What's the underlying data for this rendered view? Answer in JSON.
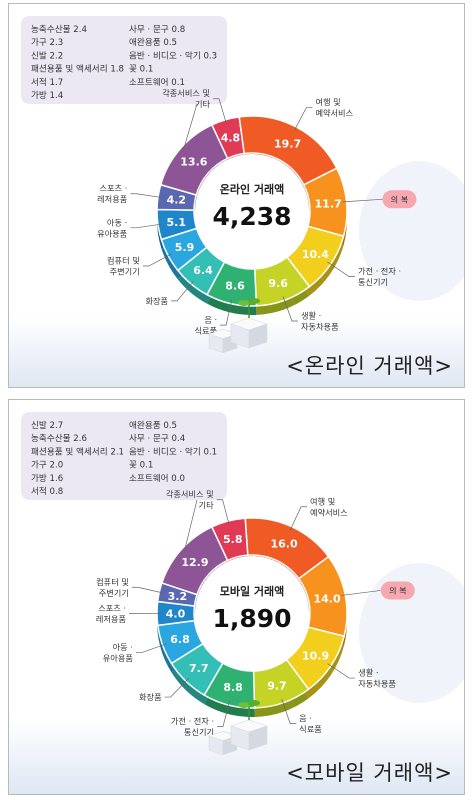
{
  "chart_data": [
    {
      "type": "pie",
      "center_title": "온라인 거래액",
      "total": "4,238",
      "caption": "<온라인 거래액>",
      "highlight": "의 복",
      "slices": [
        {
          "label": "각종서비스 및 기타",
          "value": "4.8",
          "color": "#e03a55"
        },
        {
          "label": "여행 및 예약서비스",
          "value": "19.7",
          "color": "#f05a24"
        },
        {
          "label": "의 복",
          "value": "11.7",
          "color": "#f7921e"
        },
        {
          "label": "가전 · 전자 · 통신기기",
          "value": "10.4",
          "color": "#f2cf1d"
        },
        {
          "label": "생활 · 자동차용품",
          "value": "9.6",
          "color": "#c4d325"
        },
        {
          "label": "음 · 식료품",
          "value": "8.6",
          "color": "#2fb171"
        },
        {
          "label": "화장품",
          "value": "6.4",
          "color": "#33bfb5"
        },
        {
          "label": "컴퓨터 및 주변기기",
          "value": "5.9",
          "color": "#2aa7e0"
        },
        {
          "label": "아동 · 유아용품",
          "value": "5.1",
          "color": "#1f86cc"
        },
        {
          "label": "스포츠 · 레저용품",
          "value": "4.2",
          "color": "#5a67b1"
        },
        {
          "label": "",
          "value": "13.6",
          "color": "#8e5596"
        }
      ],
      "legend_col1": [
        "농축수산물 2.4",
        "가구 2.3",
        "신발 2.2",
        "패션용품 및 액세서리 1.8",
        "서적 1.7",
        "가방 1.4"
      ],
      "legend_col2": [
        "사무 · 문구 0.8",
        "애완용품 0.5",
        "음반 · 비디오 · 악기 0.3",
        "꽃 0.1",
        "소프트웨어 0.1"
      ]
    },
    {
      "type": "pie",
      "center_title": "모바일 거래액",
      "total": "1,890",
      "caption": "<모바일 거래액>",
      "highlight": "의 복",
      "slices": [
        {
          "label": "각종서비스 및 기타",
          "value": "5.8",
          "color": "#e03a55"
        },
        {
          "label": "여행 및 예약서비스",
          "value": "16.0",
          "color": "#f05a24"
        },
        {
          "label": "의 복",
          "value": "14.0",
          "color": "#f7921e"
        },
        {
          "label": "생활 · 자동차용품",
          "value": "10.9",
          "color": "#f2cf1d"
        },
        {
          "label": "음 · 식료품",
          "value": "9.7",
          "color": "#c4d325"
        },
        {
          "label": "가전 · 전자 · 통신기기",
          "value": "8.8",
          "color": "#2fb171"
        },
        {
          "label": "화장품",
          "value": "7.7",
          "color": "#33bfb5"
        },
        {
          "label": "아동 · 유아용품",
          "value": "6.8",
          "color": "#2aa7e0"
        },
        {
          "label": "스포츠 · 레저용품",
          "value": "4.0",
          "color": "#1f86cc"
        },
        {
          "label": "컴퓨터 및 주변기기",
          "value": "3.2",
          "color": "#5a67b1"
        },
        {
          "label": "",
          "value": "12.9",
          "color": "#8e5596"
        }
      ],
      "legend_col1": [
        "신발 2.7",
        "농축수산물 2.6",
        "패션용품 및 액세서리 2.1",
        "가구 2.0",
        "가방 1.6",
        "서적 0.8"
      ],
      "legend_col2": [
        "애완용품 0.5",
        "사무 · 문구 0.4",
        "음반 · 비디오 · 악기 0.1",
        "꽃 0.1",
        "소프트웨어 0.0"
      ]
    }
  ]
}
